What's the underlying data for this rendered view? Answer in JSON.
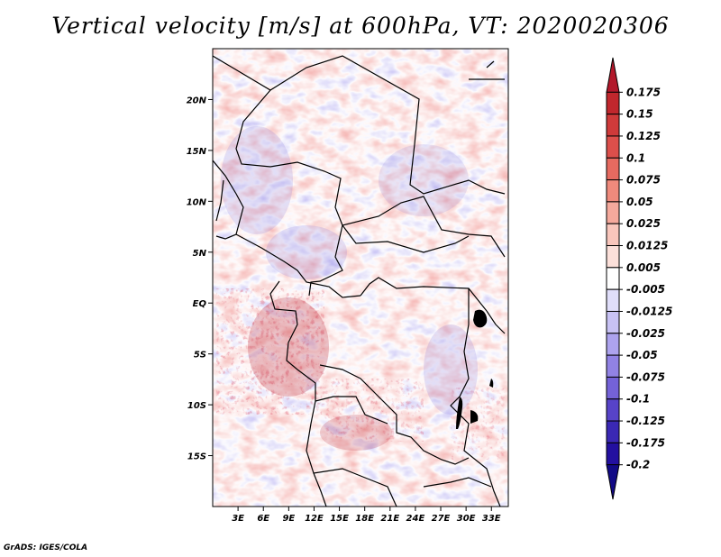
{
  "title": "Vertical velocity [m/s] at 600hPa, VT: 2020020306",
  "credit": "GrADS: IGES/COLA",
  "map": {
    "region": "Central Africa",
    "lon_range": [
      0,
      35
    ],
    "lat_range": [
      -20,
      25
    ],
    "lat_ticks": [
      {
        "value": 20,
        "label": "20N"
      },
      {
        "value": 15,
        "label": "15N"
      },
      {
        "value": 10,
        "label": "10N"
      },
      {
        "value": 5,
        "label": "5N"
      },
      {
        "value": 0,
        "label": "EQ"
      },
      {
        "value": -5,
        "label": "5S"
      },
      {
        "value": -10,
        "label": "10S"
      },
      {
        "value": -15,
        "label": "15S"
      }
    ],
    "lon_ticks": [
      {
        "value": 3,
        "label": "3E"
      },
      {
        "value": 6,
        "label": "6E"
      },
      {
        "value": 9,
        "label": "9E"
      },
      {
        "value": 12,
        "label": "12E"
      },
      {
        "value": 15,
        "label": "15E"
      },
      {
        "value": 18,
        "label": "18E"
      },
      {
        "value": 21,
        "label": "21E"
      },
      {
        "value": 24,
        "label": "24E"
      },
      {
        "value": 27,
        "label": "27E"
      },
      {
        "value": 30,
        "label": "30E"
      },
      {
        "value": 33,
        "label": "33E"
      }
    ]
  },
  "colorbar": {
    "units": "m/s",
    "labels": [
      "0.175",
      "0.15",
      "0.125",
      "0.1",
      "0.075",
      "0.05",
      "0.025",
      "0.0125",
      "0.005",
      "-0.005",
      "-0.0125",
      "-0.025",
      "-0.05",
      "-0.075",
      "-0.1",
      "-0.125",
      "-0.175",
      "-0.2"
    ],
    "colors": [
      "#b2182b",
      "#c1272d",
      "#cf3a3a",
      "#dc4f4b",
      "#e66a60",
      "#ef8a7c",
      "#f5a99c",
      "#f9c6bc",
      "#fce0da",
      "#ffffff",
      "#e0defa",
      "#c8c2f4",
      "#ada3ee",
      "#9182e4",
      "#7462d8",
      "#5743c8",
      "#3a28b4",
      "#2310a0",
      "#120a86"
    ]
  }
}
